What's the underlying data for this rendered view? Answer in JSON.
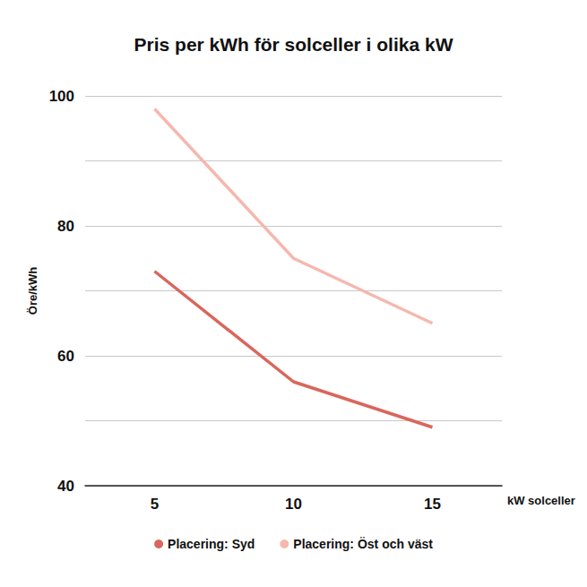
{
  "chart_data": {
    "type": "line",
    "title": "Pris per kWh för solceller i olika kW",
    "x_label": "kW solceller",
    "y_label": "Öre/kWh",
    "categories": [
      "5",
      "10",
      "15"
    ],
    "series": [
      {
        "name": "Placering: Syd",
        "color": "#d9665c",
        "values": [
          73,
          56,
          49
        ]
      },
      {
        "name": "Placering: Öst och väst",
        "color": "#f5b8ae",
        "values": [
          98,
          75,
          65
        ]
      }
    ],
    "ylim": [
      40,
      100
    ],
    "yticks": [
      40,
      60,
      80,
      100
    ],
    "grid": true,
    "legend": "bottom"
  }
}
